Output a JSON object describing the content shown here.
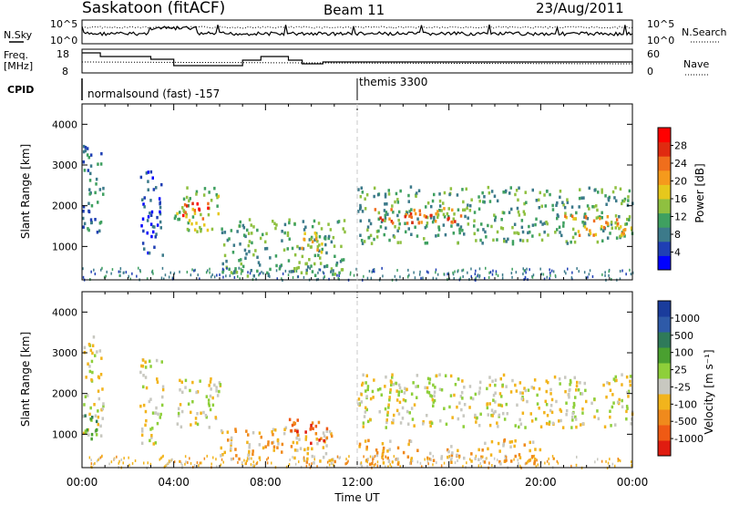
{
  "header": {
    "title": "Saskatoon (fitACF)",
    "beam": "Beam 11",
    "date": "23/Aug/2011"
  },
  "noise_panel": {
    "left_label": "N.Sky",
    "right_label": "N.Search",
    "yticks_left": [
      "10^5",
      "10^0"
    ],
    "yticks_right": [
      "10^5",
      "10^0"
    ]
  },
  "freq_panel": {
    "left_label_line1": "Freq.",
    "left_label_line2": "[MHz]",
    "right_label": "Nave",
    "yticks_left": [
      "18",
      "8"
    ],
    "yticks_right": [
      "60",
      "0"
    ]
  },
  "cpid": {
    "label": "CPID",
    "segments": [
      {
        "text": "normalsound (fast) -157",
        "start_hour": 0
      },
      {
        "text": "themis 3300",
        "start_hour": 12
      }
    ]
  },
  "colors": {
    "power_scale": [
      "#0000ff",
      "#1f3fb4",
      "#3c7a8a",
      "#3fa060",
      "#8fc040",
      "#e6c81c",
      "#f59a1c",
      "#f06e1c",
      "#e02a10",
      "#ff0000"
    ],
    "velocity_scale": [
      "#1a3c9c",
      "#2e5aa8",
      "#2f7a5a",
      "#4aa030",
      "#8ecf3a",
      "#c8c8c0",
      "#f2b41c",
      "#f08a1c",
      "#ef5a14",
      "#e01c10"
    ],
    "gray": "#c8c8c0"
  },
  "chart_data": [
    {
      "type": "heatmap",
      "name": "power",
      "ylabel": "Slant Range [km]",
      "colorbar_label": "Power [dB]",
      "colorbar_ticks": [
        "4",
        "8",
        "12",
        "16",
        "20",
        "24",
        "28"
      ],
      "xlim": [
        0,
        24
      ],
      "ylim": [
        180,
        4500
      ],
      "yticks": [
        "1000",
        "2000",
        "3000",
        "4000"
      ],
      "xtick_labels": [
        "00:00",
        "04:00",
        "08:00",
        "12:00",
        "16:00",
        "20:00",
        "00:00"
      ],
      "features": [
        {
          "t0": 0.0,
          "t1": 0.9,
          "r0": 1200,
          "r1": 3500,
          "level": 2
        },
        {
          "t0": 2.5,
          "t1": 3.5,
          "r0": 800,
          "r1": 2900,
          "level": 1
        },
        {
          "t0": 4.0,
          "t1": 6.0,
          "r0": 1400,
          "r1": 2500,
          "level": 4
        },
        {
          "t0": 4.2,
          "t1": 5.5,
          "r0": 1700,
          "r1": 2100,
          "level": 8
        },
        {
          "t0": 6.0,
          "t1": 11.5,
          "r0": 300,
          "r1": 1700,
          "level": 3
        },
        {
          "t0": 9.5,
          "t1": 10.5,
          "r0": 700,
          "r1": 1400,
          "level": 5
        },
        {
          "t0": 12.0,
          "t1": 24.0,
          "r0": 1100,
          "r1": 2500,
          "level": 3
        },
        {
          "t0": 12.5,
          "t1": 16.5,
          "r0": 1600,
          "r1": 2000,
          "level": 7
        },
        {
          "t0": 21.0,
          "t1": 24.0,
          "r0": 1300,
          "r1": 1800,
          "level": 6
        }
      ]
    },
    {
      "type": "heatmap",
      "name": "velocity",
      "xlabel": "Time UT",
      "ylabel": "Slant Range [km]",
      "colorbar_label": "Velocity [m s⁻¹]",
      "colorbar_ticks": [
        "1000",
        "500",
        "100",
        "25",
        "-25",
        "-100",
        "-500",
        "-1000"
      ],
      "xlim": [
        0,
        24
      ],
      "ylim": [
        180,
        4500
      ],
      "yticks": [
        "1000",
        "2000",
        "3000",
        "4000"
      ],
      "xtick_labels": [
        "00:00",
        "04:00",
        "08:00",
        "12:00",
        "16:00",
        "20:00",
        "00:00"
      ],
      "features": [
        {
          "t0": 0.0,
          "t1": 0.9,
          "r0": 1000,
          "r1": 3500,
          "level": 5
        },
        {
          "t0": 0.0,
          "t1": 0.6,
          "r0": 900,
          "r1": 1800,
          "level": 3
        },
        {
          "t0": 2.5,
          "t1": 3.5,
          "r0": 800,
          "r1": 2900,
          "level": 5
        },
        {
          "t0": 4.0,
          "t1": 6.0,
          "r0": 1200,
          "r1": 2400,
          "level": 5
        },
        {
          "t0": 6.0,
          "t1": 11.0,
          "r0": 300,
          "r1": 1200,
          "level": 6
        },
        {
          "t0": 9.0,
          "t1": 11.0,
          "r0": 800,
          "r1": 1400,
          "level": 8
        },
        {
          "t0": 12.0,
          "t1": 24.0,
          "r0": 1200,
          "r1": 2500,
          "level": 5
        },
        {
          "t0": 12.0,
          "t1": 20.0,
          "r0": 300,
          "r1": 900,
          "level": 6
        }
      ]
    }
  ]
}
